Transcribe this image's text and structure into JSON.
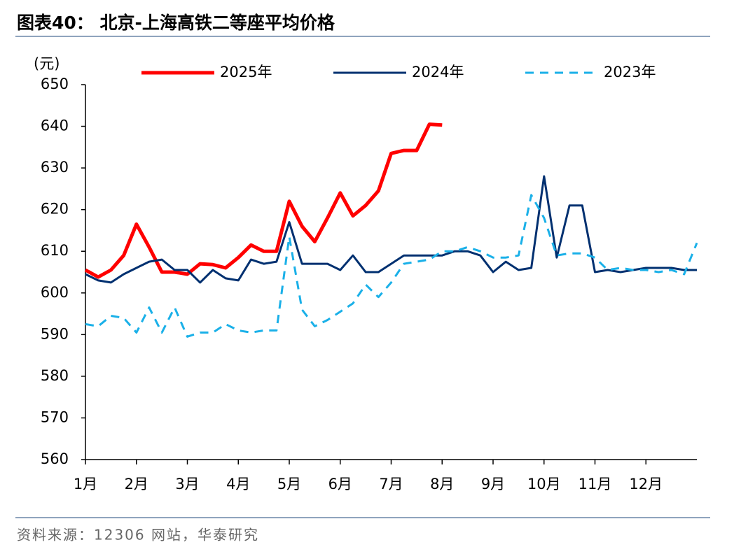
{
  "chart_data": {
    "type": "line",
    "title": "图表40：  北京-上海高铁二等座平均价格",
    "y_label": "(元)",
    "source": "资料来源：12306 网站，华泰研究",
    "x": [
      0,
      0.25,
      0.5,
      0.75,
      1,
      1.25,
      1.5,
      1.75,
      2,
      2.25,
      2.5,
      2.75,
      3,
      3.25,
      3.5,
      3.75,
      4,
      4.25,
      4.5,
      4.75,
      5,
      5.25,
      5.5,
      5.75,
      6,
      6.25,
      6.5,
      6.75,
      7,
      7.25,
      7.5,
      7.75,
      8,
      8.25,
      8.5,
      8.75,
      9,
      9.25,
      9.5,
      9.75,
      10,
      10.25,
      10.5,
      10.75,
      11,
      11.25,
      11.5,
      11.75,
      12
    ],
    "xlim": [
      0,
      12
    ],
    "xticks": [
      {
        "value": 0,
        "label": "1月"
      },
      {
        "value": 1,
        "label": "2月"
      },
      {
        "value": 2,
        "label": "3月"
      },
      {
        "value": 3,
        "label": "4月"
      },
      {
        "value": 4,
        "label": "5月"
      },
      {
        "value": 5,
        "label": "6月"
      },
      {
        "value": 6,
        "label": "7月"
      },
      {
        "value": 7,
        "label": "8月"
      },
      {
        "value": 8,
        "label": "9月"
      },
      {
        "value": 9,
        "label": "10月"
      },
      {
        "value": 10,
        "label": "11月"
      },
      {
        "value": 11,
        "label": "12月"
      }
    ],
    "ylim": [
      560,
      650
    ],
    "yticks": [
      560,
      570,
      580,
      590,
      600,
      610,
      620,
      630,
      640,
      650
    ],
    "legend": "top",
    "series": [
      {
        "name": "2025年",
        "color": "#ff0000",
        "style": "solid",
        "values": [
          605.5,
          603.8,
          605.5,
          609,
          616.5,
          611,
          605,
          605,
          604.5,
          607,
          606.8,
          606,
          608.5,
          611.5,
          610,
          610,
          622,
          616,
          612.3,
          618,
          624,
          618.5,
          621,
          624.5,
          633.5,
          634.2,
          634.2,
          640.5,
          640.3,
          null,
          null,
          null,
          null,
          null,
          null,
          null,
          null,
          null,
          null,
          null,
          null,
          null,
          null,
          null,
          null,
          null,
          null,
          null,
          null
        ]
      },
      {
        "name": "2024年",
        "color": "#003070",
        "style": "solid",
        "values": [
          604.5,
          603,
          602.5,
          604.5,
          606,
          607.5,
          608,
          605.5,
          605.5,
          602.5,
          605.5,
          603.5,
          603,
          608,
          607,
          607.5,
          617,
          607,
          607,
          607,
          605.5,
          609,
          605,
          605,
          607,
          609,
          609,
          609,
          609,
          610,
          610,
          609,
          605,
          607.5,
          605.5,
          606,
          628,
          608.5,
          621,
          621,
          605,
          605.5,
          605,
          605.5,
          606,
          606,
          606,
          605.5,
          605.5
        ]
      },
      {
        "name": "2023年",
        "color": "#1ab0e8",
        "style": "dashed",
        "values": [
          592.5,
          592,
          594.5,
          594,
          590.5,
          596.5,
          590.5,
          596.5,
          589.5,
          590.5,
          590.5,
          592.5,
          591,
          590.5,
          591,
          591,
          613.5,
          596,
          592,
          593.5,
          595.5,
          597.5,
          602,
          599,
          602.5,
          607,
          607.5,
          608,
          610,
          610,
          611,
          610,
          608.5,
          608.5,
          609,
          623.5,
          618,
          609,
          609.5,
          609.5,
          608.5,
          605.5,
          606,
          605.5,
          605.5,
          605,
          605.5,
          604.5,
          612
        ]
      }
    ]
  }
}
